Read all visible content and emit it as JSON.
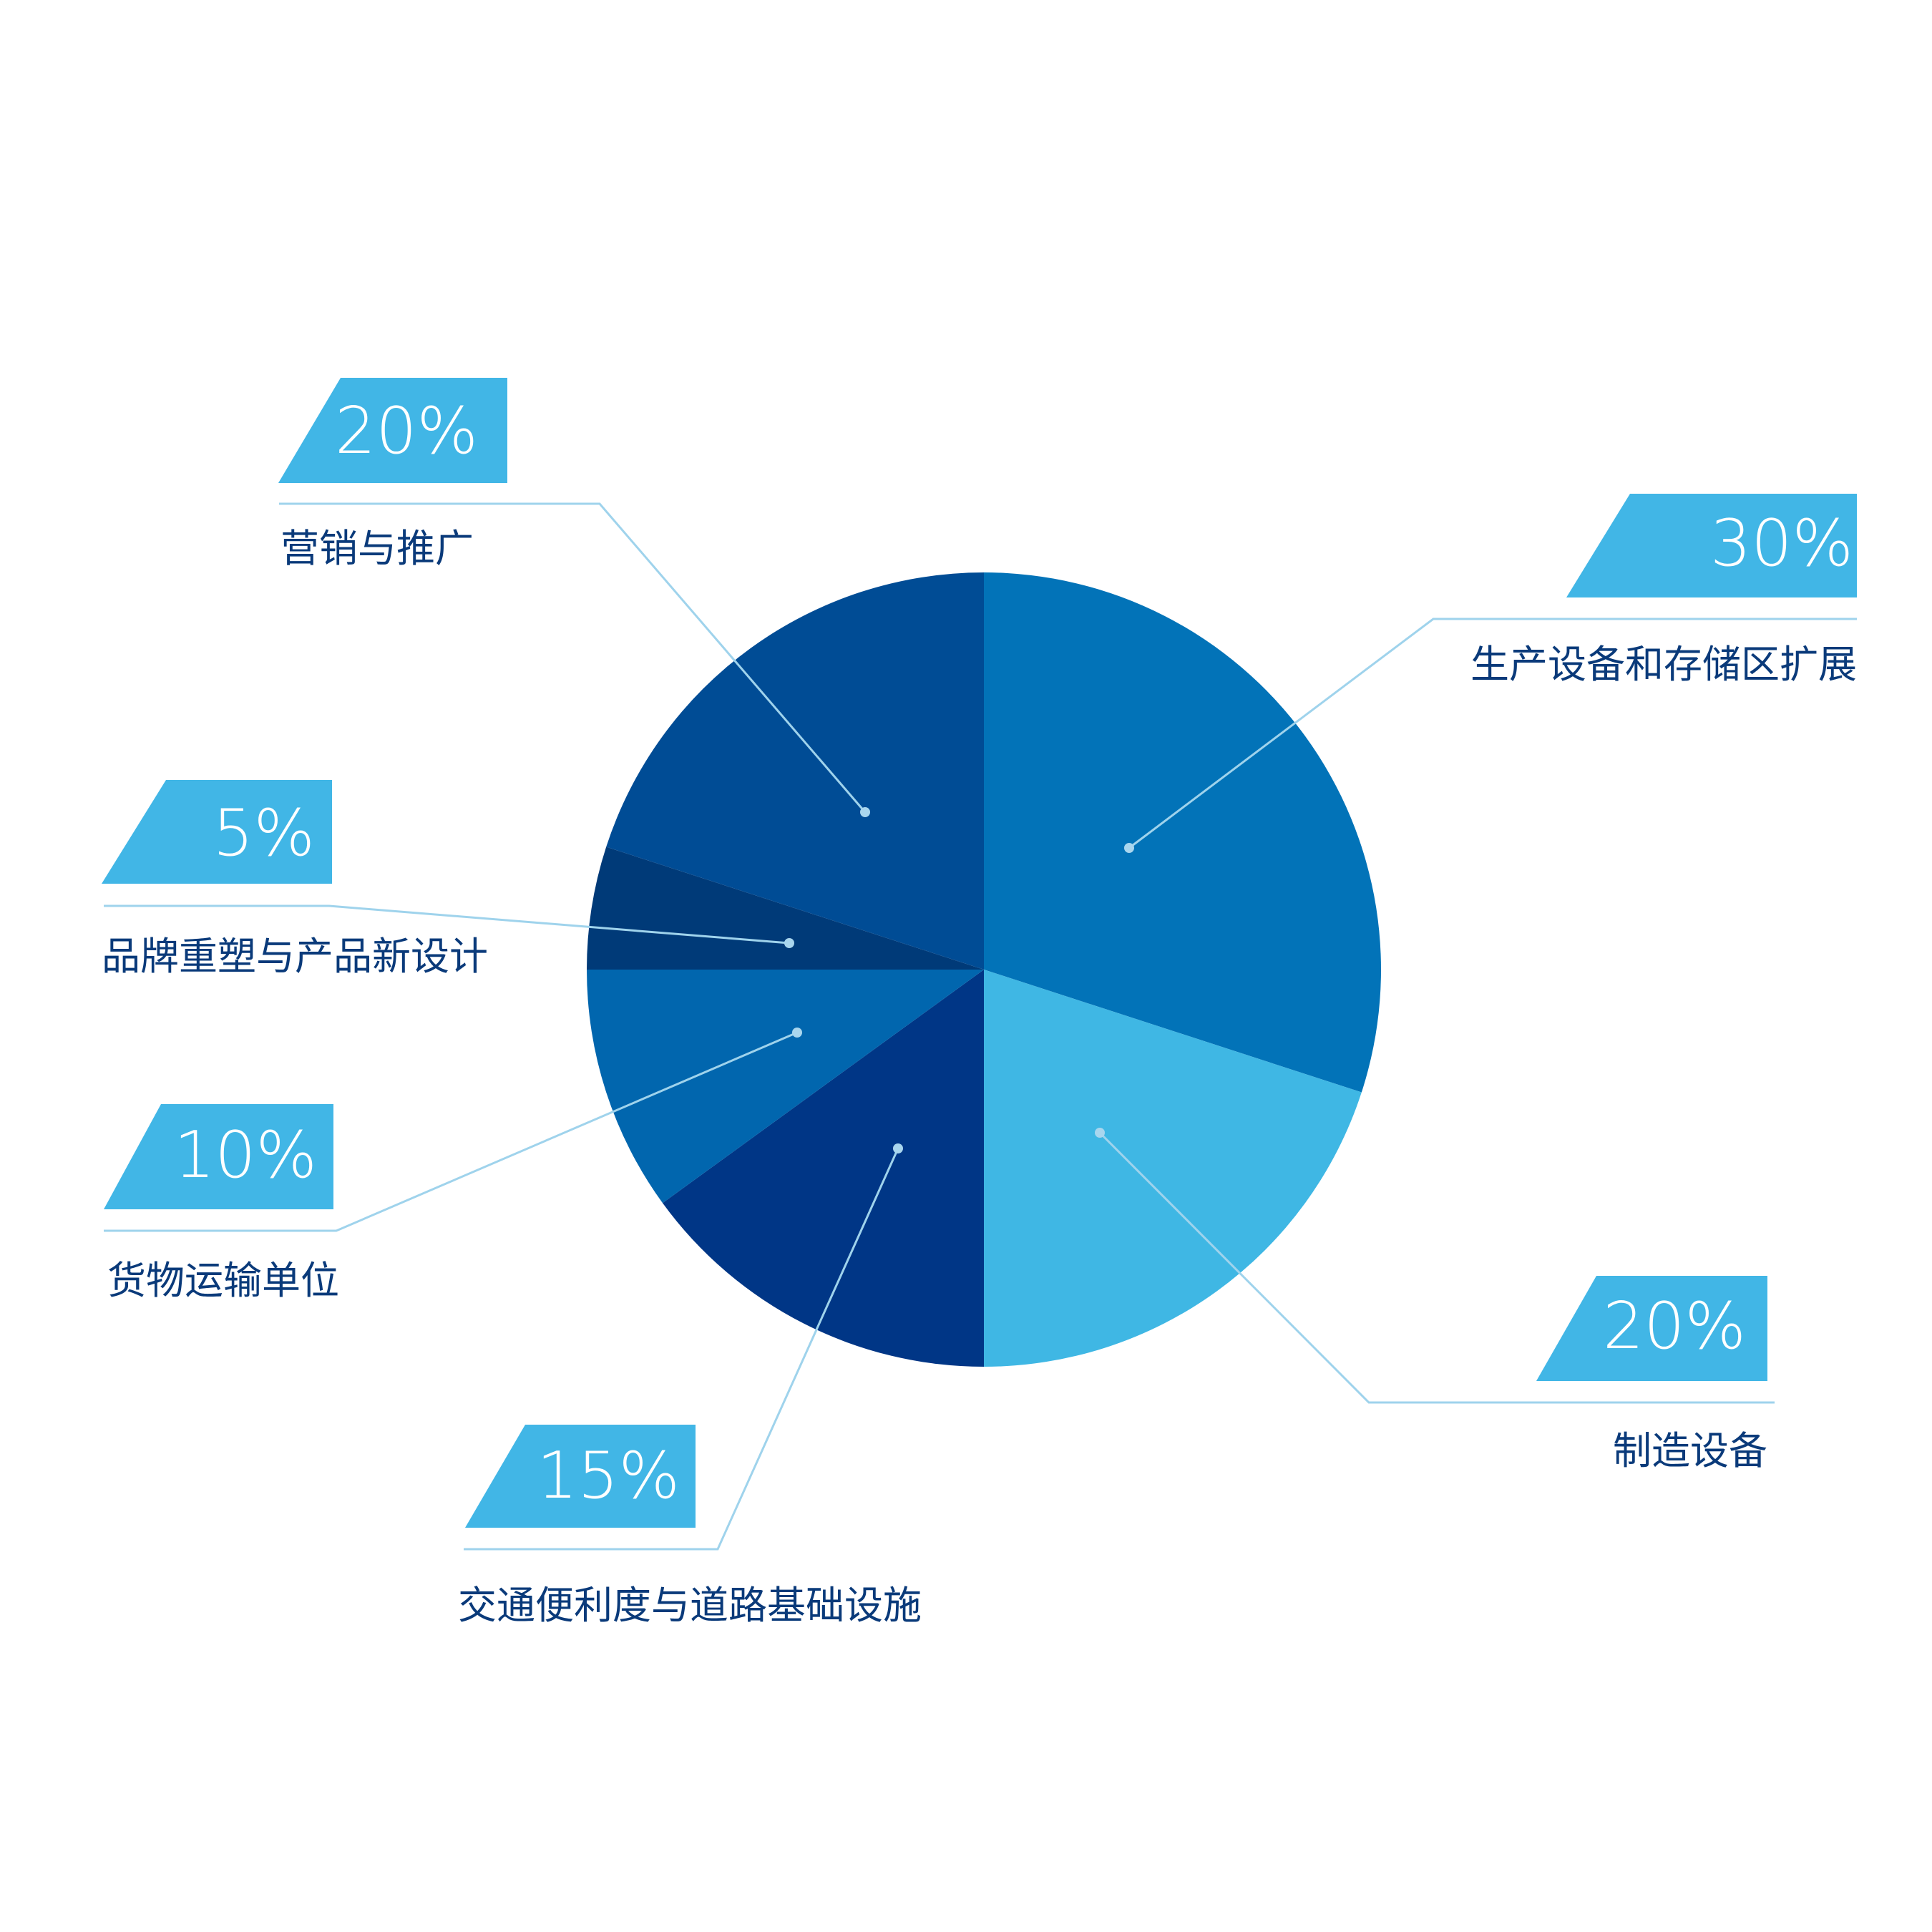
{
  "chart_data": {
    "type": "pie",
    "slices": [
      {
        "label": "生产设备和存储区扩展",
        "value": 30,
        "value_label": "30%",
        "color": "#0273b8"
      },
      {
        "label": "制造设备",
        "value": 20,
        "value_label": "20%",
        "color": "#3fb7e4"
      },
      {
        "label": "交通便利度与道路基础设施",
        "value": 15,
        "value_label": "15%",
        "color": "#003686"
      },
      {
        "label": "货物运输单位",
        "value": 10,
        "value_label": "10%",
        "color": "#0166ae"
      },
      {
        "label": "品牌重塑与产品新设计",
        "value": 5,
        "value_label": "5%",
        "color": "#003a78"
      },
      {
        "label": "营销与推广",
        "value": 20,
        "value_label": "20%",
        "color": "#004c95"
      }
    ],
    "badge_color": "#41b6e6",
    "leader_color": "#9fd3ec",
    "label_color": "#0a3a7a"
  }
}
